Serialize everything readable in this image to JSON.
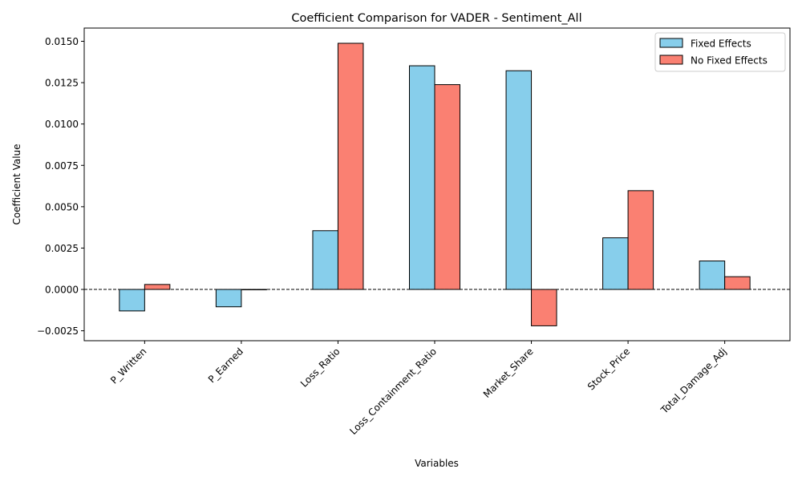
{
  "chart_data": {
    "type": "bar",
    "title": "Coefficient Comparison for VADER - Sentiment_All",
    "xlabel": "Variables",
    "ylabel": "Coefficient Value",
    "categories": [
      "P_Written",
      "P_Earned",
      "Loss_Ratio",
      "Loss_Containment_Ratio",
      "Market_Share",
      "Stock_Price",
      "Total_Damage_Adj"
    ],
    "series": [
      {
        "name": "Fixed Effects",
        "color": "#87ceeb",
        "values": [
          -0.0013,
          -0.00105,
          0.00355,
          0.01352,
          0.01322,
          0.00312,
          0.00172
        ]
      },
      {
        "name": "No Fixed Effects",
        "color": "#fa8072",
        "values": [
          0.0003,
          0.0,
          0.01488,
          0.01238,
          -0.0022,
          0.00597,
          0.00077
        ]
      }
    ],
    "ylim": [
      -0.0031,
      0.0158
    ],
    "yticks": [
      "−0.0025",
      "0.0000",
      "0.0025",
      "0.0050",
      "0.0075",
      "0.0100",
      "0.0125",
      "0.0150"
    ],
    "ytick_values": [
      -0.0025,
      0.0,
      0.0025,
      0.005,
      0.0075,
      0.01,
      0.0125,
      0.015
    ],
    "zero_line": {
      "style": "dashed",
      "color": "#000000"
    },
    "grid": false,
    "legend": {
      "position": "top-right"
    }
  }
}
